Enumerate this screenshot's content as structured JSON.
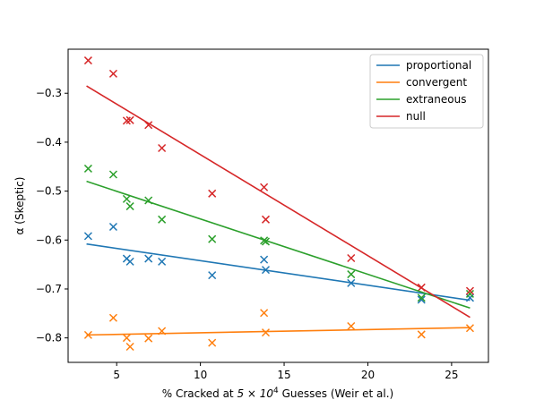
{
  "chart_data": {
    "type": "scatter",
    "title": "",
    "xlabel_prefix": "% Cracked at ",
    "xlabel_mult": "5 × 10",
    "xlabel_exp": "4",
    "xlabel_suffix": " Guesses (Weir et al.)",
    "ylabel": "α (Skeptic)",
    "xlim": [
      2.1,
      27.2
    ],
    "ylim": [
      -0.85,
      -0.21
    ],
    "xticks": [
      5,
      10,
      15,
      20,
      25
    ],
    "yticks": [
      -0.8,
      -0.7,
      -0.6,
      -0.5,
      -0.4,
      -0.3
    ],
    "legend_position": "top-right",
    "series": [
      {
        "name": "proportional",
        "color": "#1f77b4",
        "points": [
          [
            3.3,
            -0.592
          ],
          [
            4.8,
            -0.573
          ],
          [
            5.6,
            -0.638
          ],
          [
            5.8,
            -0.644
          ],
          [
            6.9,
            -0.638
          ],
          [
            7.7,
            -0.644
          ],
          [
            10.7,
            -0.672
          ],
          [
            13.8,
            -0.64
          ],
          [
            13.9,
            -0.661
          ],
          [
            19.0,
            -0.688
          ],
          [
            23.2,
            -0.722
          ],
          [
            26.1,
            -0.718
          ]
        ],
        "fit": [
          [
            3.2,
            -0.608
          ],
          [
            26.1,
            -0.723
          ]
        ]
      },
      {
        "name": "convergent",
        "color": "#ff7f0e",
        "points": [
          [
            3.3,
            -0.794
          ],
          [
            4.8,
            -0.759
          ],
          [
            5.6,
            -0.8
          ],
          [
            5.8,
            -0.818
          ],
          [
            6.9,
            -0.801
          ],
          [
            7.7,
            -0.786
          ],
          [
            10.7,
            -0.81
          ],
          [
            13.8,
            -0.749
          ],
          [
            13.9,
            -0.789
          ],
          [
            19.0,
            -0.776
          ],
          [
            23.2,
            -0.793
          ],
          [
            26.1,
            -0.78
          ]
        ],
        "fit": [
          [
            3.2,
            -0.794
          ],
          [
            26.1,
            -0.779
          ]
        ]
      },
      {
        "name": "extraneous",
        "color": "#2ca02c",
        "points": [
          [
            3.3,
            -0.454
          ],
          [
            4.8,
            -0.466
          ],
          [
            5.6,
            -0.516
          ],
          [
            5.8,
            -0.531
          ],
          [
            6.9,
            -0.519
          ],
          [
            7.7,
            -0.558
          ],
          [
            10.7,
            -0.598
          ],
          [
            13.8,
            -0.601
          ],
          [
            13.9,
            -0.603
          ],
          [
            19.0,
            -0.67
          ],
          [
            23.2,
            -0.718
          ],
          [
            26.1,
            -0.71
          ]
        ],
        "fit": [
          [
            3.2,
            -0.48
          ],
          [
            26.1,
            -0.739
          ]
        ]
      },
      {
        "name": "null",
        "color": "#d62728",
        "points": [
          [
            3.3,
            -0.233
          ],
          [
            4.8,
            -0.26
          ],
          [
            5.6,
            -0.356
          ],
          [
            5.8,
            -0.355
          ],
          [
            6.9,
            -0.365
          ],
          [
            7.7,
            -0.412
          ],
          [
            10.7,
            -0.505
          ],
          [
            13.8,
            -0.492
          ],
          [
            13.9,
            -0.558
          ],
          [
            19.0,
            -0.637
          ],
          [
            23.2,
            -0.697
          ],
          [
            26.1,
            -0.704
          ]
        ],
        "fit": [
          [
            3.2,
            -0.285
          ],
          [
            26.1,
            -0.758
          ]
        ]
      }
    ]
  }
}
